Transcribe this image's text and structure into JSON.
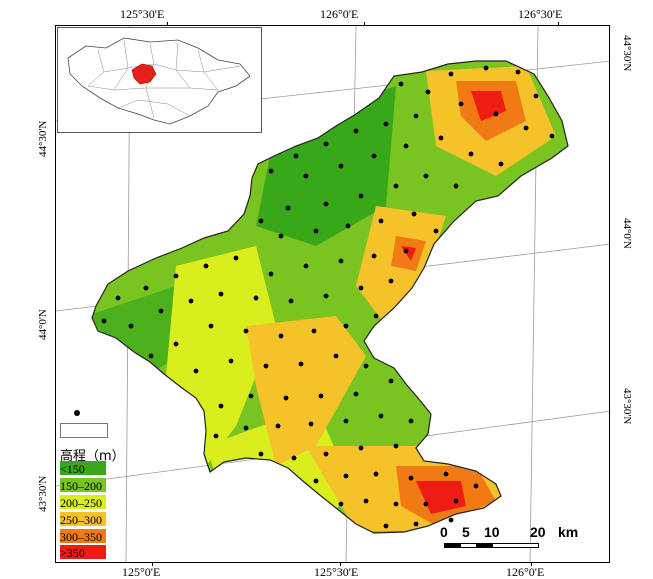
{
  "map": {
    "axis_labels": {
      "top": [
        "125°30'E",
        "126°0'E",
        "126°30'E"
      ],
      "bottom": [
        "125°0'E",
        "125°30'E",
        "126°0'E"
      ],
      "left": [
        "44°30'N",
        "44°0'N",
        "43°30'N"
      ],
      "right": [
        "44°30'N",
        "44°0'N",
        "43°30'N"
      ]
    }
  },
  "legend": {
    "title": "高程（m）",
    "classes": [
      {
        "label": "<150",
        "color": "#38a81a"
      },
      {
        "label": "150–200",
        "color": "#79c420"
      },
      {
        "label": "200–250",
        "color": "#d9ee1c"
      },
      {
        "label": "250–300",
        "color": "#f6c22a"
      },
      {
        "label": "300–350",
        "color": "#f07a14"
      },
      {
        "label": ">350",
        "color": "#ee1c12"
      }
    ],
    "point_symbol": "black-dot",
    "inset_highlight_color": "#e8201a"
  },
  "scale": {
    "labels": [
      "0",
      "5",
      "10",
      "20"
    ],
    "unit": "km"
  }
}
